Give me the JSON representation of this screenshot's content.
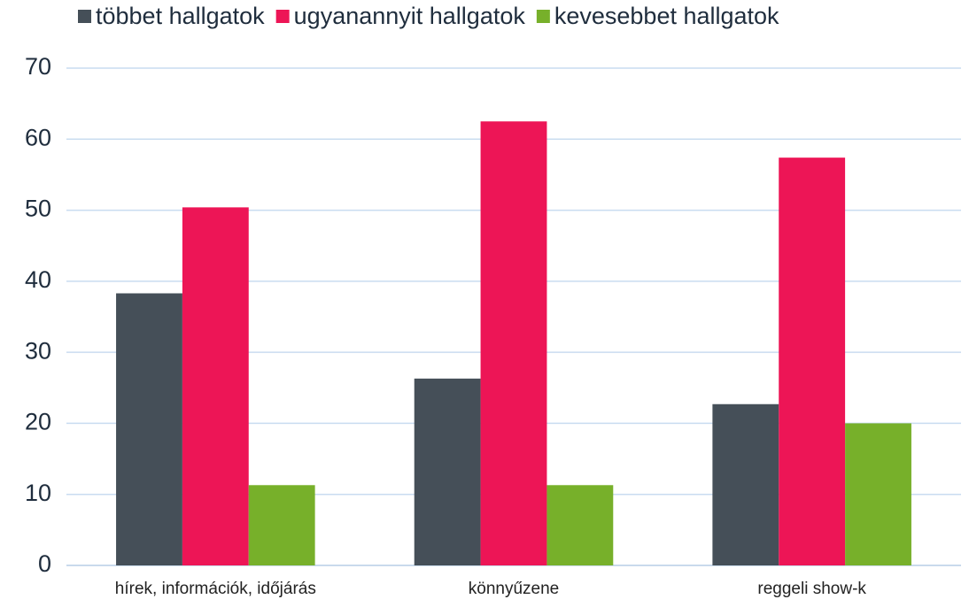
{
  "chart_data": {
    "type": "bar",
    "categories": [
      "hírek, információk, időjárás",
      "könnyűzene",
      "reggeli show-k"
    ],
    "series": [
      {
        "name": "többet hallgatok",
        "color": "#454f58",
        "values": [
          38.3,
          26.3,
          22.7
        ]
      },
      {
        "name": "ugyanannyit hallgatok",
        "color": "#ed1556",
        "values": [
          50.4,
          62.5,
          57.4
        ]
      },
      {
        "name": "kevesebbet hallgatok",
        "color": "#77b02a",
        "values": [
          11.3,
          11.3,
          20.0
        ]
      }
    ],
    "ylim": [
      0,
      70
    ],
    "yticks": [
      0,
      10,
      20,
      30,
      40,
      50,
      60,
      70
    ],
    "grid": true,
    "legend": "top"
  }
}
